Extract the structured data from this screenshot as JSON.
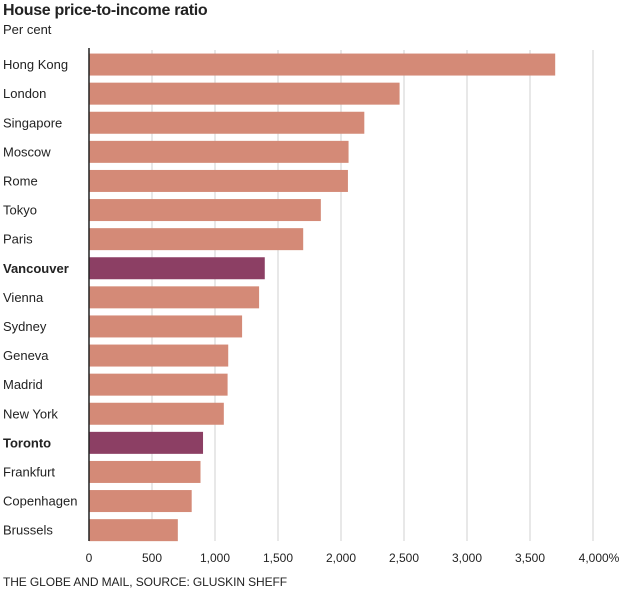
{
  "chart_data": {
    "type": "bar",
    "orientation": "horizontal",
    "title": "House price-to-income ratio",
    "subtitle": "Per cent",
    "categories": [
      "Hong Kong",
      "London",
      "Singapore",
      "Moscow",
      "Rome",
      "Tokyo",
      "Paris",
      "Vancouver",
      "Vienna",
      "Sydney",
      "Geneva",
      "Madrid",
      "New York",
      "Toronto",
      "Frankfurt",
      "Copenhagen",
      "Brussels"
    ],
    "values": [
      3700,
      2465,
      2185,
      2060,
      2055,
      1840,
      1700,
      1395,
      1350,
      1215,
      1105,
      1100,
      1070,
      905,
      885,
      815,
      705
    ],
    "highlighted": [
      "Vancouver",
      "Toronto"
    ],
    "xlim": [
      0,
      4000
    ],
    "xticks": [
      0,
      500,
      1000,
      1500,
      2000,
      2500,
      3000,
      3500,
      4000
    ],
    "xtick_labels": [
      "0",
      "500",
      "1,000",
      "1,500",
      "2,000",
      "2,500",
      "3,000",
      "3,500",
      "4,000%"
    ],
    "grid": true,
    "colors": {
      "bar": "#d48a77",
      "highlight": "#8c3f64",
      "grid": "#d0d0d0",
      "axis": "#222222"
    }
  },
  "footer": {
    "source": "THE GLOBE AND MAIL, SOURCE: GLUSKIN SHEFF"
  }
}
